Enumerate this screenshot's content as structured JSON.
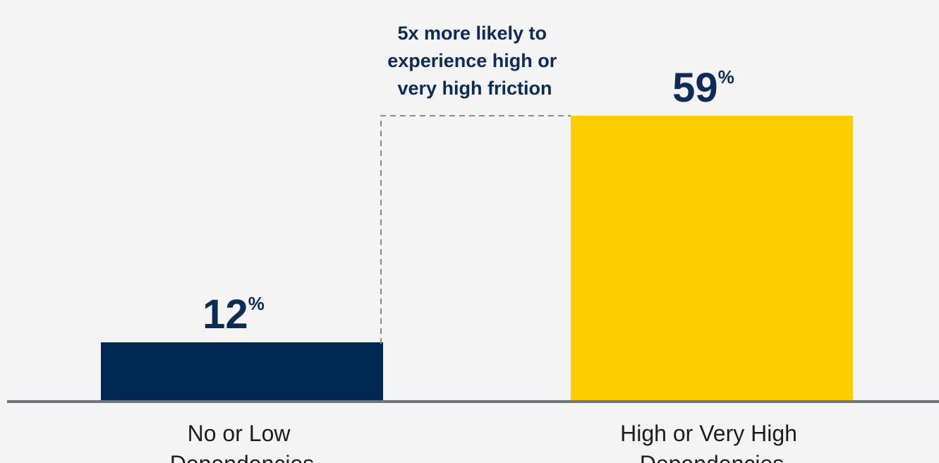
{
  "chart_data": {
    "type": "bar",
    "categories": [
      "No or Low Dependencies",
      "High or Very High Dependencies"
    ],
    "category_label_lines": [
      [
        "No or Low",
        "Dependencies"
      ],
      [
        "High or Very High",
        "Dependencies"
      ]
    ],
    "values": [
      12,
      59
    ],
    "value_labels": [
      "12",
      "59"
    ],
    "value_suffix": "%",
    "ylim": [
      0,
      59
    ],
    "grid": false,
    "annotation": {
      "lines": [
        "5x more likely to",
        "experience high or",
        "very high friction"
      ]
    },
    "colors": {
      "bars": [
        "#002855",
        "#ffcd00"
      ],
      "value_text": "#0c2b57",
      "axis": "#6d7378",
      "connector": "#8a8a8a",
      "background": "#f4f4f4"
    }
  }
}
